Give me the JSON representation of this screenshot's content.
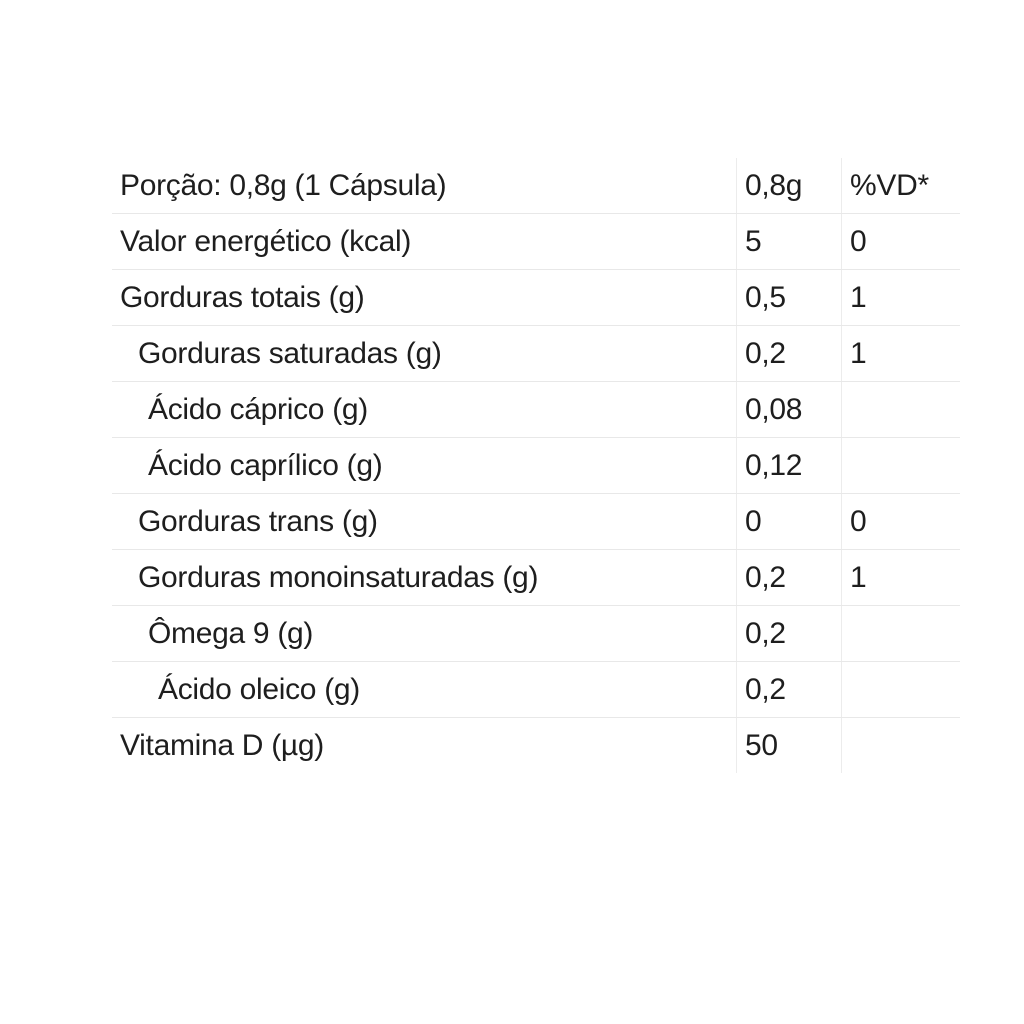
{
  "table": {
    "rows": [
      {
        "label": "Porção: 0,8g (1 Cápsula)",
        "amount": "0,8g",
        "dv": "%VD*",
        "level": 0
      },
      {
        "label": "Valor energético (kcal)",
        "amount": "5",
        "dv": "0",
        "level": 0
      },
      {
        "label": "Gorduras totais (g)",
        "amount": "0,5",
        "dv": "1",
        "level": 0
      },
      {
        "label": "Gorduras saturadas (g)",
        "amount": "0,2",
        "dv": "1",
        "level": 1
      },
      {
        "label": "Ácido cáprico (g)",
        "amount": "0,08",
        "dv": "",
        "level": 2
      },
      {
        "label": "Ácido caprílico (g)",
        "amount": "0,12",
        "dv": "",
        "level": 2
      },
      {
        "label": "Gorduras trans (g)",
        "amount": "0",
        "dv": "0",
        "level": 1
      },
      {
        "label": "Gorduras monoinsaturadas (g)",
        "amount": "0,2",
        "dv": "1",
        "level": 1
      },
      {
        "label": "Ômega 9 (g)",
        "amount": "0,2",
        "dv": "",
        "level": 2
      },
      {
        "label": "Ácido oleico (g)",
        "amount": "0,2",
        "dv": "",
        "level": 3
      },
      {
        "label": "Vitamina D (µg)",
        "amount": "50",
        "dv": "",
        "level": 0
      }
    ]
  }
}
